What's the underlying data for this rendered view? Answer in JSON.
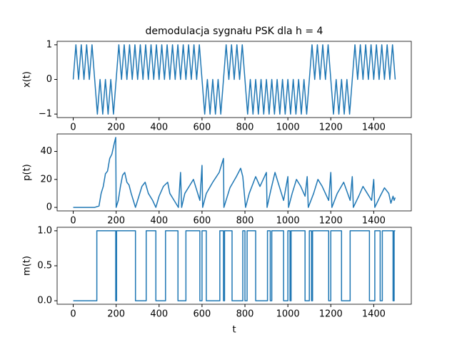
{
  "chart_data": [
    {
      "type": "line",
      "title": "demodulacja sygnału PSK dla h = 4",
      "ylabel": "x(t)",
      "color": "#1f77b4",
      "xlim": [
        -75,
        1575
      ],
      "ylim": [
        -1.1,
        1.1
      ],
      "xticks": [
        0,
        200,
        400,
        600,
        800,
        1000,
        1200,
        1400
      ],
      "yticks": [
        {
          "value": -1,
          "label": "−1"
        },
        0,
        1
      ],
      "x": [
        0,
        12.5,
        25,
        37.5,
        50,
        62.5,
        75,
        87.5,
        100,
        112.5,
        125,
        137.5,
        150,
        162.5,
        175,
        187.5,
        200,
        212.5,
        225,
        237.5,
        250,
        262.5,
        275,
        287.5,
        300,
        312.5,
        325,
        337.5,
        350,
        362.5,
        375,
        387.5,
        400,
        412.5,
        425,
        437.5,
        450,
        462.5,
        475,
        487.5,
        500,
        512.5,
        525,
        537.5,
        550,
        562.5,
        575,
        587.5,
        600,
        612.5,
        625,
        637.5,
        650,
        662.5,
        675,
        687.5,
        700,
        712.5,
        725,
        737.5,
        750,
        762.5,
        775,
        787.5,
        800,
        812.5,
        825,
        837.5,
        850,
        862.5,
        875,
        887.5,
        900,
        912.5,
        925,
        937.5,
        950,
        962.5,
        975,
        987.5,
        1000,
        1012.5,
        1025,
        1037.5,
        1050,
        1062.5,
        1075,
        1087.5,
        1100,
        1112.5,
        1125,
        1137.5,
        1150,
        1162.5,
        1175,
        1187.5,
        1200,
        1212.5,
        1225,
        1237.5,
        1250,
        1262.5,
        1275,
        1287.5,
        1300,
        1312.5,
        1325,
        1337.5,
        1350,
        1362.5,
        1375,
        1387.5,
        1400,
        1412.5,
        1425,
        1437.5,
        1450,
        1462.5,
        1475,
        1487.5,
        1500
      ],
      "values": [
        0,
        1,
        0,
        1,
        0,
        1,
        0,
        1,
        0,
        -1,
        0,
        -1,
        0,
        -1,
        0,
        -1,
        0,
        1,
        0,
        1,
        0,
        1,
        0,
        1,
        0,
        1,
        0,
        1,
        0,
        1,
        0,
        1,
        0,
        1,
        0,
        1,
        0,
        1,
        0,
        1,
        0,
        1,
        0,
        1,
        0,
        1,
        0,
        1,
        0,
        -1,
        0,
        -1,
        0,
        -1,
        0,
        -1,
        0,
        1,
        0,
        1,
        0,
        1,
        0,
        1,
        0,
        -1,
        0,
        -1,
        0,
        -1,
        0,
        -1,
        0,
        -1,
        0,
        -1,
        0,
        -1,
        0,
        -1,
        0,
        -1,
        0,
        -1,
        0,
        -1,
        0,
        -1,
        0,
        1,
        0,
        1,
        0,
        1,
        0,
        1,
        0,
        -1,
        0,
        -1,
        0,
        -1,
        0,
        -1,
        0,
        1,
        0,
        1,
        0,
        1,
        0,
        1,
        0,
        1,
        0,
        1,
        0,
        1,
        0,
        1,
        0
      ]
    },
    {
      "type": "line",
      "ylabel": "p(t)",
      "color": "#1f77b4",
      "xlim": [
        -75,
        1575
      ],
      "ylim": [
        -2.5,
        52.5
      ],
      "xticks": [
        0,
        200,
        400,
        600,
        800,
        1000,
        1200,
        1400
      ],
      "yticks": [
        0,
        20,
        40
      ],
      "x": [
        0,
        100,
        120,
        130,
        140,
        150,
        160,
        170,
        180,
        190,
        198,
        200,
        210,
        220,
        230,
        240,
        250,
        260,
        270,
        280,
        290,
        300,
        320,
        335,
        350,
        370,
        385,
        400,
        420,
        440,
        450,
        470,
        490,
        500,
        505,
        520,
        540,
        560,
        590,
        600,
        603,
        620,
        650,
        680,
        700,
        702,
        730,
        760,
        780,
        790,
        800,
        803,
        820,
        850,
        870,
        900,
        903,
        920,
        940,
        960,
        980,
        1000,
        1003,
        1020,
        1040,
        1060,
        1080,
        1090,
        1095,
        1120,
        1140,
        1160,
        1190,
        1200,
        1205,
        1230,
        1260,
        1290,
        1300,
        1305,
        1330,
        1350,
        1370,
        1390,
        1400,
        1405,
        1430,
        1450,
        1470,
        1480,
        1490,
        1495,
        1500
      ],
      "values": [
        0,
        0,
        1,
        10,
        15,
        24,
        26,
        35,
        38,
        45,
        50,
        0,
        5,
        15,
        23,
        25,
        18,
        16,
        10,
        5,
        0,
        5,
        15,
        18,
        10,
        5,
        0,
        8,
        15,
        18,
        10,
        5,
        0,
        25,
        0,
        10,
        15,
        20,
        5,
        30,
        0,
        10,
        18,
        25,
        35,
        0,
        14,
        22,
        28,
        22,
        5,
        0,
        10,
        22,
        15,
        25,
        0,
        12,
        25,
        15,
        5,
        22,
        0,
        10,
        20,
        15,
        8,
        22,
        0,
        10,
        20,
        15,
        5,
        25,
        0,
        10,
        18,
        5,
        22,
        0,
        8,
        15,
        10,
        5,
        20,
        0,
        8,
        14,
        10,
        3,
        8,
        5,
        7
      ]
    },
    {
      "type": "line",
      "ylabel": "m(t)",
      "xlabel": "t",
      "color": "#1f77b4",
      "xlim": [
        -75,
        1575
      ],
      "ylim": [
        -0.05,
        1.05
      ],
      "xticks": [
        0,
        200,
        400,
        600,
        800,
        1000,
        1200,
        1400
      ],
      "yticks": [
        {
          "value": 0,
          "label": "0.0"
        },
        0.5,
        {
          "value": 1,
          "label": "1.0"
        }
      ],
      "x": [
        0,
        110,
        110,
        198,
        198,
        202,
        202,
        290,
        290,
        340,
        340,
        385,
        385,
        430,
        430,
        488,
        488,
        525,
        525,
        590,
        590,
        600,
        600,
        620,
        620,
        683,
        683,
        700,
        700,
        705,
        705,
        740,
        740,
        790,
        790,
        800,
        800,
        810,
        810,
        850,
        850,
        905,
        905,
        918,
        918,
        925,
        925,
        980,
        980,
        1000,
        1000,
        1010,
        1010,
        1015,
        1015,
        1080,
        1080,
        1100,
        1100,
        1110,
        1110,
        1115,
        1115,
        1190,
        1190,
        1200,
        1200,
        1250,
        1250,
        1290,
        1290,
        1380,
        1380,
        1405,
        1405,
        1430,
        1430,
        1440,
        1440,
        1490,
        1490,
        1495,
        1495,
        1500
      ],
      "values": [
        0,
        0,
        1,
        1,
        0,
        0,
        1,
        1,
        0,
        0,
        1,
        1,
        0,
        0,
        1,
        1,
        0,
        0,
        1,
        1,
        0,
        0,
        1,
        1,
        0,
        0,
        1,
        1,
        0,
        0,
        1,
        1,
        0,
        0,
        1,
        1,
        0,
        0,
        1,
        1,
        0,
        0,
        1,
        1,
        0,
        0,
        1,
        1,
        0,
        0,
        1,
        1,
        0,
        0,
        1,
        1,
        0,
        0,
        1,
        1,
        0,
        0,
        1,
        1,
        0,
        0,
        1,
        1,
        0,
        0,
        1,
        1,
        0,
        0,
        1,
        1,
        0,
        0,
        1,
        1,
        0,
        0,
        1,
        1
      ]
    }
  ]
}
